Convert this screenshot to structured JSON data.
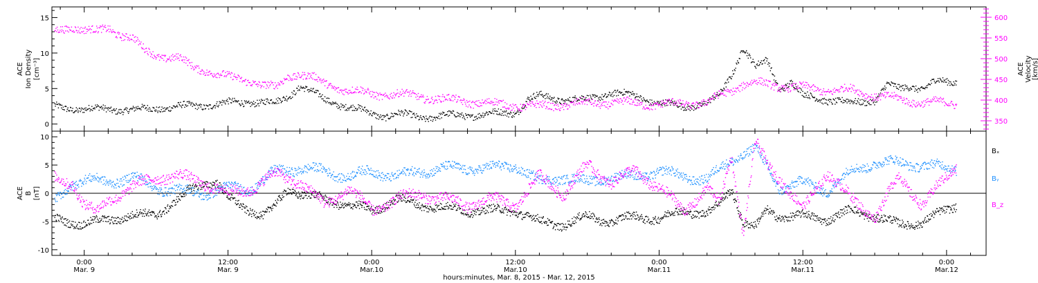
{
  "figure": {
    "xlabel": "hours:minutes, Mar. 8, 2015 - Mar. 12, 2015",
    "x_ticks": [
      {
        "hour": 0,
        "time": "0:00",
        "date": "Mar. 9"
      },
      {
        "hour": 12,
        "time": "12:00",
        "date": "Mar. 9"
      },
      {
        "hour": 24,
        "time": "0:00",
        "date": "Mar.10"
      },
      {
        "hour": 36,
        "time": "12:00",
        "date": "Mar.10"
      },
      {
        "hour": 48,
        "time": "0:00",
        "date": "Mar.11"
      },
      {
        "hour": 60,
        "time": "12:00",
        "date": "Mar.11"
      },
      {
        "hour": 72,
        "time": "0:00",
        "date": "Mar.12"
      }
    ],
    "colors": {
      "density": "#000000",
      "velocity": "#ff00ff",
      "bx": "#000000",
      "by": "#1e90ff",
      "bz": "#ff00ff"
    }
  },
  "chart_data": [
    {
      "type": "scatter",
      "panel": "top",
      "xlim": [
        -2.7,
        75.3
      ],
      "x_unit": "hours relative to 0:00 Mar. 9 2015",
      "left_axis": {
        "label_lines": [
          "ACE",
          "Ion Density"
        ],
        "unit_label": "[cm⁻³]",
        "ylim": [
          -1,
          16.5
        ],
        "ticks": [
          0,
          5,
          10,
          15
        ]
      },
      "right_axis": {
        "label_lines": [
          "ACE",
          "Velocity"
        ],
        "unit_label": "[km/s]",
        "ylim": [
          325,
          625
        ],
        "ticks": [
          350,
          400,
          450,
          500,
          550,
          600
        ]
      },
      "series": [
        {
          "name": "Ion Density",
          "axis": "left",
          "color": "#000000",
          "x": [
            -2.5,
            -1,
            0,
            2,
            4,
            6,
            8,
            10,
            12,
            14,
            16,
            17,
            18,
            19,
            20,
            21,
            22,
            24,
            25,
            26,
            28,
            30,
            32,
            34,
            36,
            37,
            38,
            40,
            42,
            44,
            46,
            48,
            50,
            52,
            53,
            54,
            55,
            56,
            57,
            58,
            59,
            60,
            62,
            64,
            66,
            67,
            68,
            69,
            70,
            71,
            72.8
          ],
          "y": [
            2.5,
            2.3,
            2.1,
            2.2,
            2.0,
            2.3,
            2.5,
            2.7,
            3.0,
            3.2,
            3.0,
            4.0,
            5.5,
            4.5,
            3.5,
            3.0,
            2.5,
            1.5,
            1.2,
            1.5,
            1.0,
            1.2,
            1.3,
            1.5,
            1.7,
            3.5,
            4.0,
            3.5,
            3.5,
            4.5,
            4.0,
            3.0,
            2.5,
            3.0,
            4.0,
            7.0,
            11.0,
            8.0,
            9.0,
            5.0,
            6.0,
            4.0,
            3.5,
            3.0,
            3.5,
            5.5,
            5.0,
            5.5,
            5.0,
            6.0,
            6.0
          ]
        },
        {
          "name": "Velocity",
          "axis": "right",
          "color": "#ff00ff",
          "x": [
            -2.5,
            -1,
            0,
            1,
            2,
            3,
            4,
            5,
            6,
            7,
            8,
            9,
            10,
            12,
            14,
            15,
            16,
            17,
            18,
            19,
            20,
            22,
            24,
            26,
            28,
            30,
            32,
            34,
            36,
            38,
            40,
            42,
            44,
            46,
            48,
            50,
            52,
            53,
            54,
            55,
            56,
            58,
            60,
            62,
            64,
            66,
            68,
            70,
            72.8
          ],
          "y": [
            565,
            580,
            570,
            565,
            575,
            560,
            550,
            520,
            510,
            505,
            500,
            480,
            475,
            455,
            448,
            435,
            430,
            460,
            465,
            455,
            440,
            425,
            415,
            415,
            410,
            402,
            398,
            392,
            388,
            385,
            390,
            393,
            395,
            393,
            390,
            392,
            395,
            410,
            425,
            440,
            442,
            435,
            430,
            425,
            425,
            412,
            403,
            395,
            393
          ]
        }
      ]
    },
    {
      "type": "scatter",
      "panel": "bottom",
      "xlim": [
        -2.7,
        75.3
      ],
      "x_unit": "hours relative to 0:00 Mar. 9 2015",
      "left_axis": {
        "label_lines": [
          "ACE",
          "B"
        ],
        "unit_label": "[nT]",
        "ylim": [
          -11,
          11
        ],
        "ticks": [
          -10,
          -5,
          0,
          5,
          10
        ]
      },
      "zero_line": true,
      "legend": [
        "Bₓ",
        "Bᵧ",
        "B_z"
      ],
      "legend_placement": "right",
      "series": [
        {
          "name": "Bₓ",
          "color": "#000000",
          "x": [
            -2.5,
            -1,
            0,
            2,
            4,
            6,
            8,
            9,
            10,
            11,
            12,
            14,
            15,
            16,
            17,
            18,
            20,
            22,
            24,
            26,
            28,
            30,
            32,
            34,
            36,
            38,
            40,
            42,
            44,
            46,
            48,
            50,
            52,
            53,
            54,
            55,
            56,
            57,
            58,
            60,
            62,
            64,
            66,
            68,
            70,
            72.8
          ],
          "y": [
            -4.5,
            -5.0,
            -5.5,
            -4.5,
            -4.0,
            -3.5,
            -1.0,
            1.0,
            2.0,
            2.0,
            -1.0,
            -3.0,
            -4.0,
            -2.0,
            1.0,
            0.0,
            -1.0,
            -2.0,
            -3.0,
            -1.0,
            -2.0,
            -2.5,
            -3.0,
            -3.0,
            -3.0,
            -5.0,
            -5.5,
            -4.0,
            -5.0,
            -4.0,
            -4.5,
            -3.0,
            -3.5,
            -2.0,
            1.0,
            -5.0,
            -6.0,
            -3.0,
            -4.0,
            -4.0,
            -4.5,
            -3.0,
            -4.0,
            -5.5,
            -5.0,
            -2.0
          ]
        },
        {
          "name": "Bᵧ",
          "color": "#1e90ff",
          "x": [
            -2.5,
            -1,
            0,
            2,
            4,
            6,
            8,
            10,
            12,
            14,
            16,
            18,
            20,
            22,
            24,
            26,
            28,
            30,
            32,
            34,
            36,
            38,
            40,
            42,
            44,
            46,
            48,
            50,
            52,
            54,
            56,
            58,
            60,
            62,
            64,
            66,
            68,
            70,
            72.8
          ],
          "y": [
            -1.5,
            2.0,
            2.5,
            2.0,
            3.0,
            1.0,
            0.5,
            0.0,
            1.0,
            1.0,
            4.0,
            4.5,
            4.0,
            3.0,
            4.0,
            3.0,
            4.0,
            4.5,
            4.5,
            4.5,
            5.0,
            2.0,
            3.0,
            2.0,
            3.0,
            3.0,
            4.0,
            3.0,
            2.5,
            6.0,
            8.0,
            1.0,
            2.0,
            0.5,
            4.0,
            5.5,
            5.5,
            5.0,
            4.5
          ]
        },
        {
          "name": "B_z",
          "color": "#ff00ff",
          "x": [
            -2.5,
            -1,
            0,
            1,
            2,
            4,
            6,
            8,
            10,
            12,
            14,
            16,
            18,
            20,
            22,
            24,
            26,
            28,
            30,
            32,
            34,
            36,
            38,
            40,
            42,
            44,
            46,
            48,
            50,
            52,
            53,
            54,
            55,
            56,
            57,
            58,
            60,
            62,
            64,
            66,
            68,
            70,
            72.8
          ],
          "y": [
            2.5,
            2.0,
            -2.0,
            -3.5,
            -1.0,
            1.0,
            3.0,
            3.0,
            2.0,
            0.0,
            1.0,
            3.5,
            2.0,
            -2.0,
            1.0,
            -3.0,
            -1.0,
            0.0,
            -1.0,
            -2.0,
            -1.0,
            -2.0,
            3.0,
            0.0,
            5.0,
            2.0,
            4.0,
            1.0,
            -3.0,
            1.0,
            -2.0,
            7.0,
            -7.0,
            9.0,
            5.0,
            3.0,
            -3.0,
            4.0,
            -1.0,
            -4.0,
            3.0,
            -2.0,
            5.0
          ]
        }
      ]
    }
  ]
}
